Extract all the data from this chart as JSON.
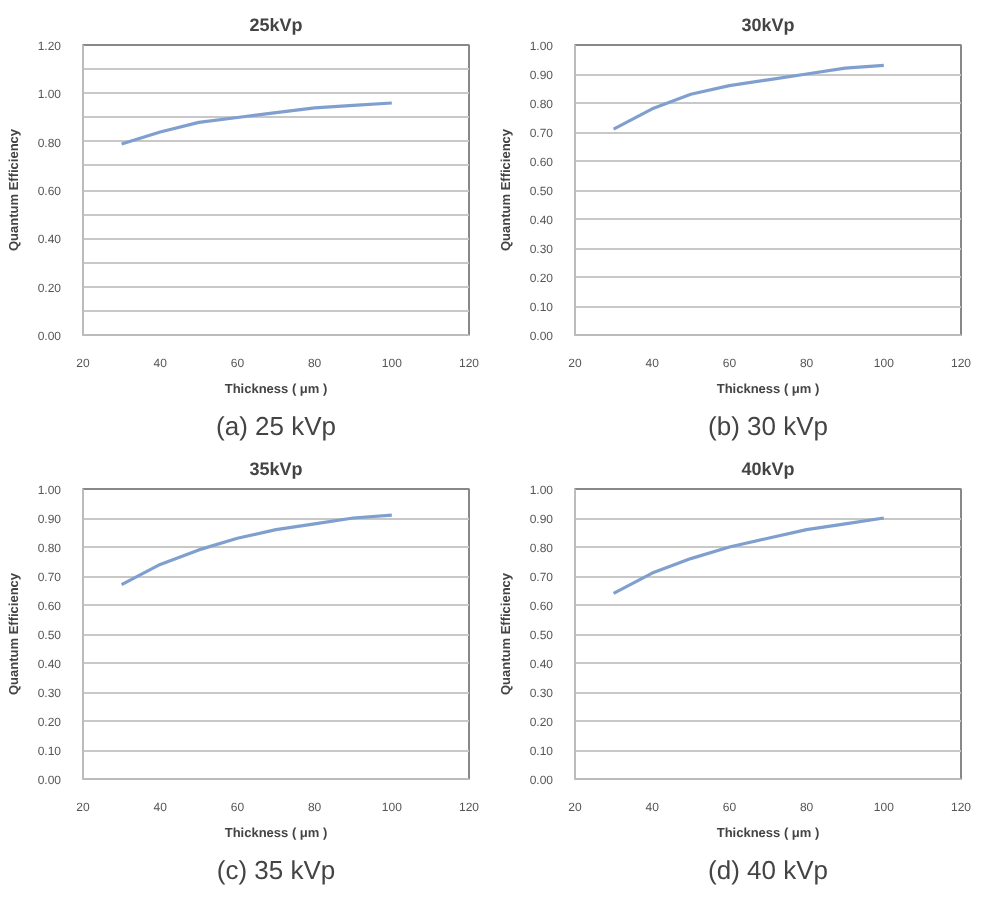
{
  "chart_data": [
    {
      "type": "line",
      "title": "25kVp",
      "xlabel": "Thickness ( μm )",
      "ylabel": "Quantum Efficiency",
      "annotations": [
        "(a) 25 kVp"
      ],
      "x": [
        30,
        40,
        50,
        60,
        70,
        80,
        90,
        100
      ],
      "grid": "y",
      "marker": "none",
      "line_style": "solid",
      "series": [
        {
          "color": "#7f9fcf",
          "values": [
            0.79,
            0.84,
            0.88,
            0.9,
            0.92,
            0.94,
            0.95,
            0.96
          ]
        }
      ],
      "xlim": [
        20,
        120
      ],
      "xticks": [
        20,
        40,
        60,
        80,
        100,
        120
      ],
      "ylim": [
        0,
        1.2
      ],
      "yticks": [
        {
          "value": 0,
          "label": "0.00"
        },
        {
          "value": 0.1,
          "label": null
        },
        {
          "value": 0.2,
          "label": "0.20"
        },
        {
          "value": 0.3,
          "label": null
        },
        {
          "value": 0.4,
          "label": "0.40"
        },
        {
          "value": 0.5,
          "label": null
        },
        {
          "value": 0.6,
          "label": "0.60"
        },
        {
          "value": 0.7,
          "label": null
        },
        {
          "value": 0.8,
          "label": "0.80"
        },
        {
          "value": 0.9,
          "label": null
        },
        {
          "value": 1.0,
          "label": "1.00"
        },
        {
          "value": 1.1,
          "label": null
        },
        {
          "value": 1.2,
          "label": "1.20"
        }
      ]
    },
    {
      "type": "line",
      "title": "30kVp",
      "xlabel": "Thickness ( μm )",
      "ylabel": "Quantum Efficiency",
      "annotations": [
        "(b) 30 kVp"
      ],
      "x": [
        30,
        40,
        50,
        60,
        70,
        80,
        90,
        100
      ],
      "grid": "y",
      "marker": "none",
      "line_style": "solid",
      "series": [
        {
          "color": "#7f9fcf",
          "values": [
            0.71,
            0.78,
            0.83,
            0.86,
            0.88,
            0.9,
            0.92,
            0.93
          ]
        }
      ],
      "xlim": [
        20,
        120
      ],
      "xticks": [
        20,
        40,
        60,
        80,
        100,
        120
      ],
      "ylim": [
        0,
        1.0
      ],
      "yticks": [
        {
          "value": 0,
          "label": "0.00"
        },
        {
          "value": 0.1,
          "label": "0.10"
        },
        {
          "value": 0.2,
          "label": "0.20"
        },
        {
          "value": 0.3,
          "label": "0.30"
        },
        {
          "value": 0.4,
          "label": "0.40"
        },
        {
          "value": 0.5,
          "label": "0.50"
        },
        {
          "value": 0.6,
          "label": "0.60"
        },
        {
          "value": 0.7,
          "label": "0.70"
        },
        {
          "value": 0.8,
          "label": "0.80"
        },
        {
          "value": 0.9,
          "label": "0.90"
        },
        {
          "value": 1.0,
          "label": "1.00"
        }
      ]
    },
    {
      "type": "line",
      "title": "35kVp",
      "xlabel": "Thickness ( μm )",
      "ylabel": "Quantum Efficiency",
      "annotations": [
        "(c) 35 kVp"
      ],
      "x": [
        30,
        40,
        50,
        60,
        70,
        80,
        90,
        100
      ],
      "grid": "y",
      "marker": "none",
      "line_style": "solid",
      "series": [
        {
          "color": "#7f9fcf",
          "values": [
            0.67,
            0.74,
            0.79,
            0.83,
            0.86,
            0.88,
            0.9,
            0.91
          ]
        }
      ],
      "xlim": [
        20,
        120
      ],
      "xticks": [
        20,
        40,
        60,
        80,
        100,
        120
      ],
      "ylim": [
        0,
        1.0
      ],
      "yticks": [
        {
          "value": 0,
          "label": "0.00"
        },
        {
          "value": 0.1,
          "label": "0.10"
        },
        {
          "value": 0.2,
          "label": "0.20"
        },
        {
          "value": 0.3,
          "label": "0.30"
        },
        {
          "value": 0.4,
          "label": "0.40"
        },
        {
          "value": 0.5,
          "label": "0.50"
        },
        {
          "value": 0.6,
          "label": "0.60"
        },
        {
          "value": 0.7,
          "label": "0.70"
        },
        {
          "value": 0.8,
          "label": "0.80"
        },
        {
          "value": 0.9,
          "label": "0.90"
        },
        {
          "value": 1.0,
          "label": "1.00"
        }
      ]
    },
    {
      "type": "line",
      "title": "40kVp",
      "xlabel": "Thickness ( μm )",
      "ylabel": "Quantum Efficiency",
      "annotations": [
        "(d) 40 kVp"
      ],
      "x": [
        30,
        40,
        50,
        60,
        70,
        80,
        90,
        100
      ],
      "grid": "y",
      "marker": "none",
      "line_style": "solid",
      "series": [
        {
          "color": "#7f9fcf",
          "values": [
            0.64,
            0.71,
            0.76,
            0.8,
            0.83,
            0.86,
            0.88,
            0.9
          ]
        }
      ],
      "xlim": [
        20,
        120
      ],
      "xticks": [
        20,
        40,
        60,
        80,
        100,
        120
      ],
      "ylim": [
        0,
        1.0
      ],
      "yticks": [
        {
          "value": 0,
          "label": "0.00"
        },
        {
          "value": 0.1,
          "label": "0.10"
        },
        {
          "value": 0.2,
          "label": "0.20"
        },
        {
          "value": 0.3,
          "label": "0.30"
        },
        {
          "value": 0.4,
          "label": "0.40"
        },
        {
          "value": 0.5,
          "label": "0.50"
        },
        {
          "value": 0.6,
          "label": "0.60"
        },
        {
          "value": 0.7,
          "label": "0.70"
        },
        {
          "value": 0.8,
          "label": "0.80"
        },
        {
          "value": 0.9,
          "label": "0.90"
        },
        {
          "value": 1.0,
          "label": "1.00"
        }
      ]
    }
  ]
}
